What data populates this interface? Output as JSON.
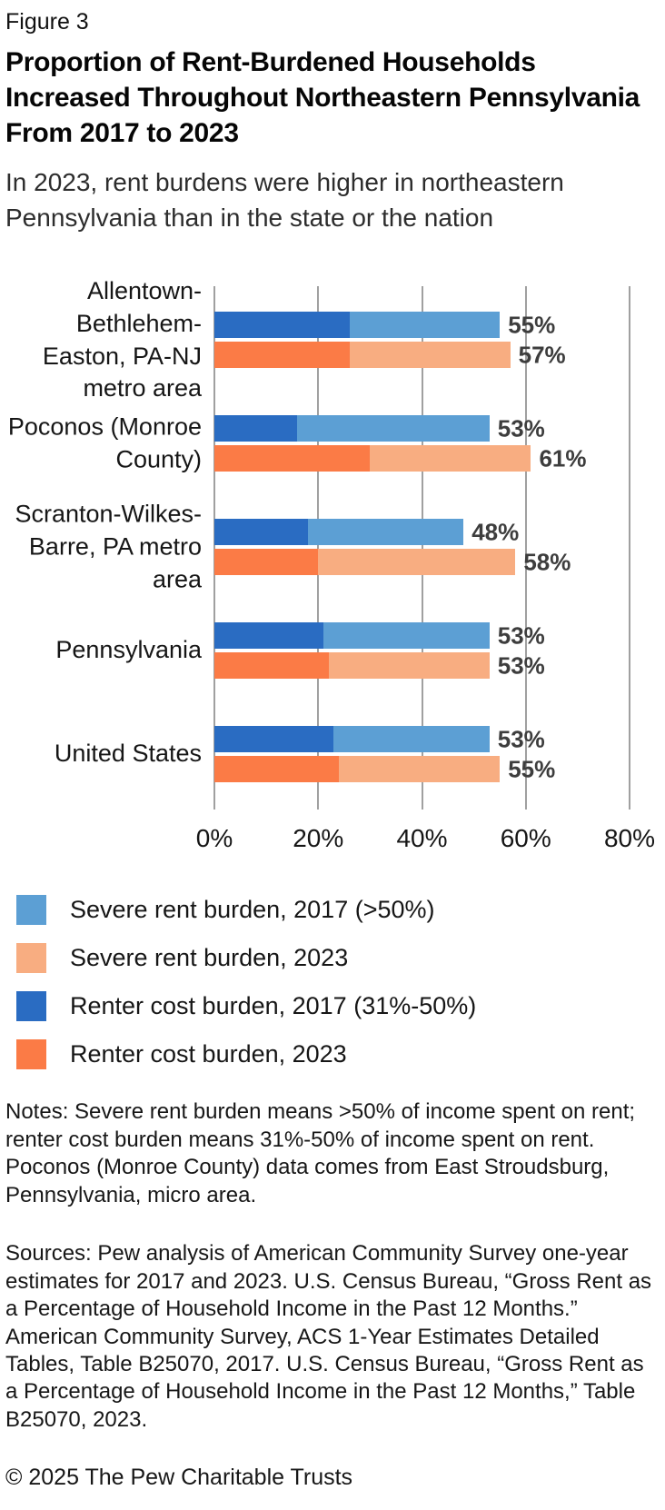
{
  "header": {
    "figure_label": "Figure 3",
    "title": "Proportion of Rent-Burdened Households Increased Throughout Northeastern Pennsylvania From 2017 to 2023",
    "subtitle": "In 2023, rent burdens were higher in northeastern Pennsylvania than in the state or the nation"
  },
  "chart_data": {
    "type": "bar",
    "orientation": "horizontal",
    "stacked": true,
    "categories": [
      "Allentown-Bethlehem-Easton, PA-NJ metro area",
      "Poconos (Monroe County)",
      "Scranton-Wilkes-Barre, PA metro area",
      "Pennsylvania",
      "United States"
    ],
    "series": [
      {
        "name": "Renter cost burden, 2017 (31%-50%)",
        "stack": "2017",
        "values": [
          26,
          16,
          18,
          21,
          23
        ],
        "color": "#2a6cc2"
      },
      {
        "name": "Severe rent burden, 2017 (>50%)",
        "stack": "2017",
        "values": [
          29,
          37,
          30,
          32,
          30
        ],
        "color": "#5c9fd4"
      },
      {
        "name": "Renter cost burden, 2023",
        "stack": "2023",
        "values": [
          26,
          30,
          20,
          22,
          24
        ],
        "color": "#fb7b46"
      },
      {
        "name": "Severe rent burden, 2023",
        "stack": "2023",
        "values": [
          31,
          31,
          38,
          31,
          31
        ],
        "color": "#f8ad81"
      }
    ],
    "bar_total_labels": {
      "2017": [
        "55%",
        "53%",
        "48%",
        "53%",
        "53%"
      ],
      "2023": [
        "57%",
        "61%",
        "58%",
        "53%",
        "55%"
      ]
    },
    "xlim": [
      0,
      80
    ],
    "x_ticks": [
      {
        "value": 0,
        "label": "0%"
      },
      {
        "value": 20,
        "label": "20%"
      },
      {
        "value": 40,
        "label": "40%"
      },
      {
        "value": 60,
        "label": "60%"
      },
      {
        "value": 80,
        "label": "80%"
      }
    ],
    "grid": true,
    "legend_position": "bottom"
  },
  "legend": {
    "items": [
      {
        "label": "Severe rent burden, 2017 (>50%)",
        "color": "#5c9fd4"
      },
      {
        "label": "Severe rent burden, 2023",
        "color": "#f8ad81"
      },
      {
        "label": "Renter cost burden, 2017 (31%-50%)",
        "color": "#2a6cc2"
      },
      {
        "label": "Renter cost burden, 2023",
        "color": "#fb7b46"
      }
    ]
  },
  "notes": "Notes: Severe rent burden means >50% of income spent on rent; renter cost burden means 31%-50% of income spent on rent. Poconos (Monroe County) data comes from East Stroudsburg, Pennsylvania, micro area.",
  "sources": "Sources: Pew analysis of American Community Survey one-year estimates for 2017 and 2023. U.S. Census Bureau, “Gross Rent as a Percentage of Household Income in the Past 12 Months.” American Community Survey, ACS 1-Year Estimates Detailed Tables, Table B25070, 2017. U.S. Census Bureau, “Gross Rent as a Percentage of Household Income in the Past 12 Months,” Table B25070, 2023.",
  "footer": "© 2025 The Pew Charitable Trusts",
  "colors": {
    "gridline": "#a0a0a0",
    "severe_2017": "#5c9fd4",
    "severe_2023": "#f8ad81",
    "cost_2017": "#2a6cc2",
    "cost_2023": "#fb7b46"
  }
}
